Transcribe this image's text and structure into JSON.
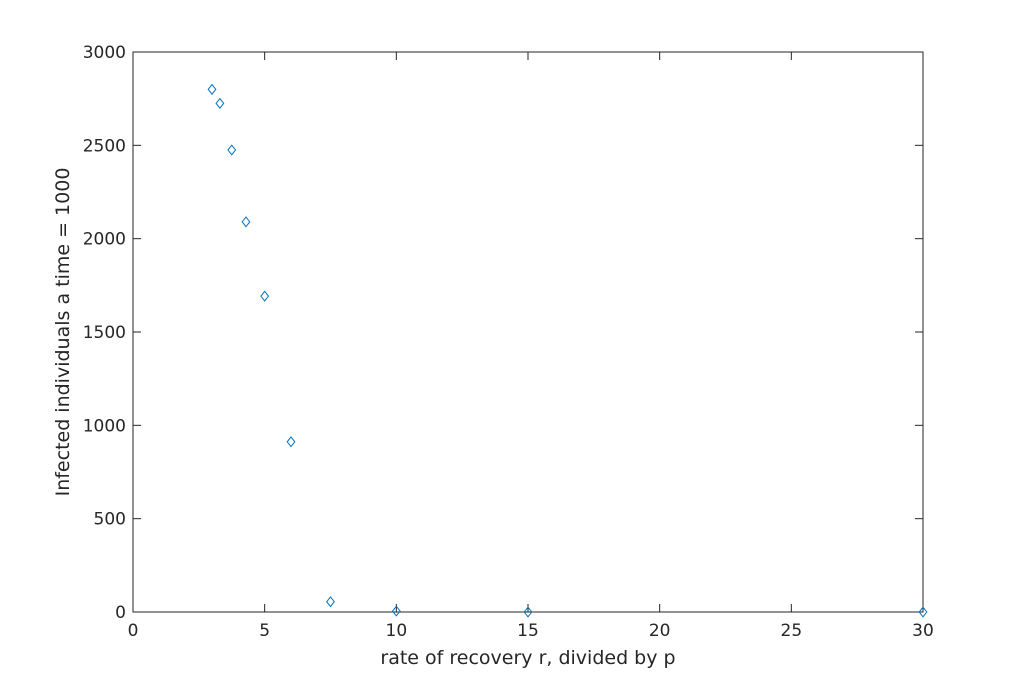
{
  "chart_data": {
    "type": "scatter",
    "title": "",
    "xlabel": "rate of recovery r, divided by p",
    "ylabel": "Infected individuals a time = 1000",
    "xlim": [
      0,
      30
    ],
    "ylim": [
      0,
      3000
    ],
    "xticks": [
      0,
      5,
      10,
      15,
      20,
      25,
      30
    ],
    "yticks": [
      0,
      500,
      1000,
      1500,
      2000,
      2500,
      3000
    ],
    "grid": false,
    "marker": "diamond",
    "marker_color": "#0072BD",
    "axis_color": "#262626",
    "series": [
      {
        "x": [
          3,
          3.3,
          3.75,
          4.29,
          5,
          6,
          7.5,
          10,
          15,
          30
        ],
        "y": [
          2800,
          2725,
          2475,
          2090,
          1692,
          912,
          55,
          5,
          0,
          0
        ]
      }
    ]
  }
}
